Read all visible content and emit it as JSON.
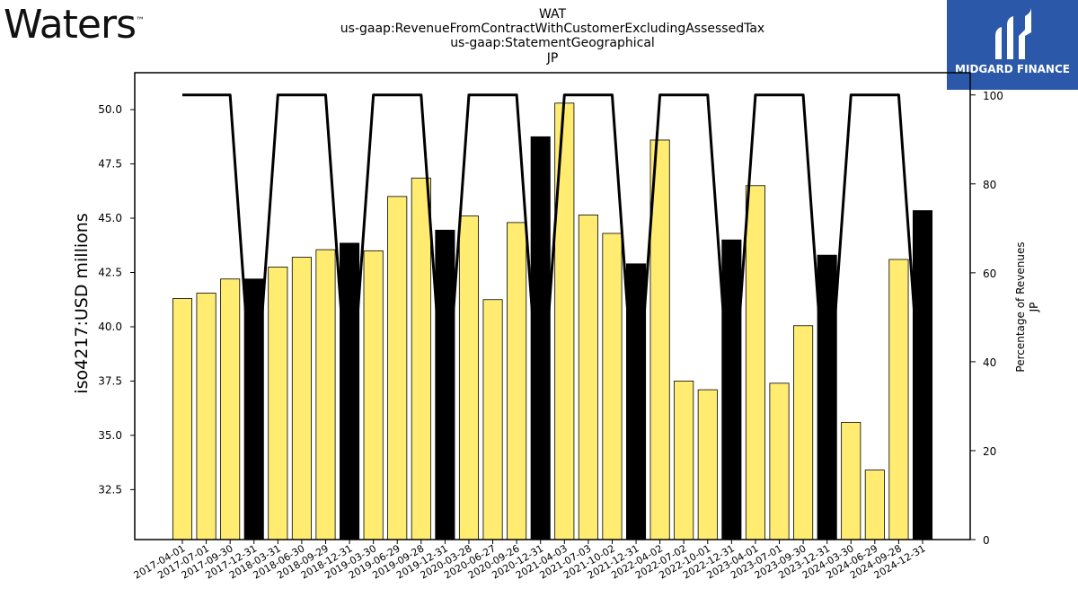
{
  "branding": {
    "company_wordmark": "Waters",
    "company_tm": "™",
    "badge_text": "MIDGARD FINANCE",
    "badge_color": "#2b58a8"
  },
  "colors": {
    "bar_fill": "#ffec70",
    "bar_highlight": "#000000",
    "line": "#000000"
  },
  "chart_data": {
    "type": "bar",
    "title_lines": [
      "WAT",
      "us-gaap:RevenueFromContractWithCustomerExcludingAssessedTax",
      "us-gaap:StatementGeographical",
      "JP"
    ],
    "ylabel": "iso4217:USD  millions",
    "ylabel_right": [
      "Percentage of Revenues",
      "JP"
    ],
    "ylim": [
      30.2,
      51.7
    ],
    "yticks": [
      "32.5",
      "35.0",
      "37.5",
      "40.0",
      "42.5",
      "45.0",
      "47.5",
      "50.0"
    ],
    "ylim_right": [
      0,
      105
    ],
    "yticks_right": [
      "0",
      "20",
      "40",
      "60",
      "80",
      "100"
    ],
    "categories": [
      "2017-04-01",
      "2017-07-01",
      "2017-09-30",
      "2017-12-31",
      "2018-03-31",
      "2018-06-30",
      "2018-09-29",
      "2018-12-31",
      "2019-03-30",
      "2019-06-29",
      "2019-09-28",
      "2019-12-31",
      "2020-03-28",
      "2020-06-27",
      "2020-09-26",
      "2020-12-31",
      "2021-04-03",
      "2021-07-03",
      "2021-10-02",
      "2021-12-31",
      "2022-04-02",
      "2022-07-02",
      "2022-10-01",
      "2022-12-31",
      "2023-04-01",
      "2023-07-01",
      "2023-09-30",
      "2023-12-31",
      "2024-03-30",
      "2024-06-29",
      "2024-09-28",
      "2024-12-31"
    ],
    "values": [
      41.3,
      41.55,
      42.2,
      42.2,
      42.75,
      43.2,
      43.55,
      43.85,
      43.5,
      46.0,
      46.85,
      44.45,
      45.1,
      41.25,
      44.8,
      48.75,
      50.3,
      45.15,
      44.3,
      42.9,
      48.6,
      37.5,
      37.1,
      44.0,
      46.5,
      37.4,
      40.05,
      43.3,
      35.6,
      33.4,
      43.1,
      45.35
    ],
    "highlighted": [
      false,
      false,
      false,
      true,
      false,
      false,
      false,
      true,
      false,
      false,
      false,
      true,
      false,
      false,
      false,
      true,
      false,
      false,
      false,
      true,
      false,
      false,
      false,
      true,
      false,
      false,
      false,
      true,
      false,
      false,
      false,
      true
    ],
    "series": [
      {
        "axis": "right",
        "style": "line",
        "values": [
          100,
          100,
          100,
          25,
          100,
          100,
          100,
          25,
          100,
          100,
          100,
          25,
          100,
          100,
          100,
          25,
          100,
          100,
          100,
          25,
          100,
          100,
          100,
          25,
          100,
          100,
          100,
          25,
          100,
          100,
          100,
          25
        ]
      }
    ]
  }
}
